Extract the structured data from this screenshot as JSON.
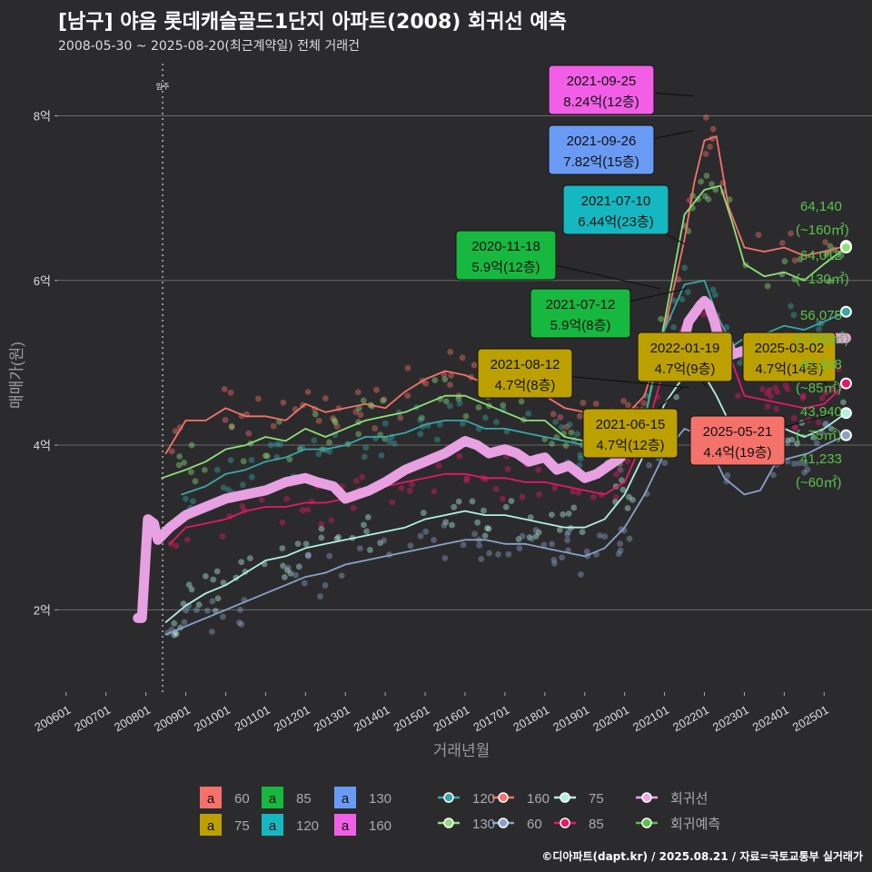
{
  "title": "[남구] 야음 롯데캐슬골드1단지 아파트(2008) 회귀선 예측",
  "subtitle": "2008-05-30 ~ 2025-08-20(최근계약일) 전체 거래건",
  "footer": "©디아파트(dapt.kr) / 2025.08.21 / 자료=국토교통부 실거래가",
  "chart_data": {
    "type": "line",
    "xlabel": "거래년월",
    "ylabel": "매매가(원)",
    "ylim": [
      1.0,
      8.7
    ],
    "xlim": [
      2005.8,
      2026.2
    ],
    "x_ticks": [
      {
        "label": "200601",
        "v": 2006.0
      },
      {
        "label": "200701",
        "v": 2007.0
      },
      {
        "label": "200801",
        "v": 2008.0
      },
      {
        "label": "200901",
        "v": 2009.0
      },
      {
        "label": "201001",
        "v": 2010.0
      },
      {
        "label": "201101",
        "v": 2011.0
      },
      {
        "label": "201201",
        "v": 2012.0
      },
      {
        "label": "201301",
        "v": 2013.0
      },
      {
        "label": "201401",
        "v": 2014.0
      },
      {
        "label": "201501",
        "v": 2015.0
      },
      {
        "label": "201601",
        "v": 2016.0
      },
      {
        "label": "201701",
        "v": 2017.0
      },
      {
        "label": "201801",
        "v": 2018.0
      },
      {
        "label": "201901",
        "v": 2019.0
      },
      {
        "label": "202001",
        "v": 2020.0
      },
      {
        "label": "202101",
        "v": 2021.0
      },
      {
        "label": "202201",
        "v": 2022.0
      },
      {
        "label": "202301",
        "v": 2023.0
      },
      {
        "label": "202401",
        "v": 2024.0
      },
      {
        "label": "202501",
        "v": 2025.0
      }
    ],
    "y_ticks": [
      {
        "label": "2억",
        "v": 2
      },
      {
        "label": "4억",
        "v": 4
      },
      {
        "label": "6억",
        "v": 6
      },
      {
        "label": "8억",
        "v": 8
      }
    ],
    "move_in": {
      "label": "입주",
      "x": 2008.42
    },
    "series": [
      {
        "name": "160",
        "color": "#f5726b",
        "x": [
          2008.5,
          2009.0,
          2009.5,
          2010.0,
          2010.5,
          2011.0,
          2011.5,
          2012.0,
          2012.5,
          2013.0,
          2013.5,
          2014.0,
          2014.5,
          2015.0,
          2015.5,
          2016.0,
          2016.5,
          2017.0,
          2017.5,
          2018.0,
          2018.5,
          2019.0,
          2019.5,
          2020.0,
          2020.5,
          2021.0,
          2021.5,
          2021.75,
          2022.0,
          2022.3,
          2022.6,
          2023.0,
          2023.5,
          2024.0,
          2024.5,
          2025.0,
          2025.55
        ],
        "values": [
          3.9,
          4.3,
          4.3,
          4.45,
          4.35,
          4.35,
          4.3,
          4.5,
          4.4,
          4.45,
          4.5,
          4.45,
          4.65,
          4.8,
          4.9,
          4.85,
          4.75,
          4.7,
          4.7,
          4.6,
          4.45,
          4.4,
          4.1,
          4.35,
          4.6,
          5.4,
          6.5,
          7.2,
          7.7,
          7.75,
          6.9,
          6.4,
          6.35,
          6.4,
          6.3,
          6.35,
          6.42
        ]
      },
      {
        "name": "130",
        "color": "#8fe07a",
        "x": [
          2008.4,
          2009.0,
          2009.5,
          2010.0,
          2010.5,
          2011.0,
          2011.5,
          2012.0,
          2012.5,
          2013.0,
          2013.5,
          2014.0,
          2014.5,
          2015.0,
          2015.5,
          2016.0,
          2016.5,
          2017.0,
          2017.5,
          2018.0,
          2018.5,
          2019.0,
          2019.5,
          2020.0,
          2020.5,
          2021.0,
          2021.5,
          2022.0,
          2022.4,
          2022.7,
          2023.0,
          2023.5,
          2024.0,
          2024.5,
          2025.0,
          2025.55
        ],
        "values": [
          3.6,
          3.7,
          3.8,
          3.95,
          4.0,
          4.1,
          4.05,
          4.2,
          4.1,
          4.2,
          4.3,
          4.35,
          4.4,
          4.5,
          4.6,
          4.6,
          4.5,
          4.4,
          4.3,
          4.3,
          4.1,
          4.05,
          3.9,
          4.0,
          4.3,
          5.5,
          6.8,
          7.1,
          7.15,
          6.7,
          6.2,
          6.05,
          6.1,
          6.0,
          6.2,
          6.4
        ]
      },
      {
        "name": "120",
        "color": "#3aa6a6",
        "x": [
          2008.9,
          2009.5,
          2010.0,
          2010.5,
          2011.0,
          2011.5,
          2012.0,
          2012.5,
          2013.0,
          2013.5,
          2014.0,
          2014.5,
          2015.0,
          2015.5,
          2016.0,
          2016.5,
          2017.0,
          2017.5,
          2018.0,
          2018.5,
          2019.0,
          2019.5,
          2020.0,
          2020.5,
          2021.0,
          2021.5,
          2022.0,
          2022.3,
          2022.7,
          2023.0,
          2023.5,
          2024.0,
          2024.5,
          2025.0,
          2025.55
        ],
        "values": [
          3.4,
          3.5,
          3.65,
          3.7,
          3.8,
          3.85,
          3.95,
          3.95,
          4.0,
          4.1,
          4.1,
          4.15,
          4.25,
          4.3,
          4.3,
          4.2,
          4.2,
          4.15,
          4.1,
          4.05,
          4.0,
          3.85,
          3.95,
          4.3,
          5.4,
          5.95,
          6.0,
          5.6,
          5.2,
          5.3,
          5.35,
          5.45,
          5.4,
          5.5,
          5.62
        ]
      },
      {
        "name": "85",
        "color": "#e6186a",
        "x": [
          2008.6,
          2009.0,
          2009.5,
          2010.0,
          2010.5,
          2011.0,
          2011.5,
          2012.0,
          2012.5,
          2013.0,
          2013.5,
          2014.0,
          2014.5,
          2015.0,
          2015.5,
          2016.0,
          2016.5,
          2017.0,
          2017.5,
          2018.0,
          2018.5,
          2019.0,
          2019.5,
          2020.0,
          2020.5,
          2021.0,
          2021.5,
          2022.0,
          2022.3,
          2022.7,
          2023.0,
          2023.5,
          2024.0,
          2024.5,
          2025.0,
          2025.55
        ],
        "values": [
          2.8,
          3.0,
          3.05,
          3.1,
          3.2,
          3.25,
          3.25,
          3.3,
          3.3,
          3.35,
          3.4,
          3.5,
          3.55,
          3.6,
          3.65,
          3.65,
          3.6,
          3.6,
          3.55,
          3.55,
          3.5,
          3.45,
          3.4,
          3.55,
          4.1,
          4.95,
          5.5,
          5.8,
          5.6,
          5.0,
          4.6,
          4.55,
          4.5,
          4.45,
          4.5,
          4.75
        ]
      },
      {
        "name": "75",
        "color": "#b2f0e0",
        "x": [
          2008.5,
          2009.0,
          2009.5,
          2010.0,
          2010.5,
          2011.0,
          2011.5,
          2012.0,
          2012.5,
          2013.0,
          2013.5,
          2014.0,
          2014.5,
          2015.0,
          2015.5,
          2016.0,
          2016.5,
          2017.0,
          2017.5,
          2018.0,
          2018.5,
          2019.0,
          2019.5,
          2020.0,
          2020.5,
          2021.0,
          2021.5,
          2022.0,
          2022.3,
          2022.6,
          2023.0,
          2023.5,
          2024.0,
          2024.5,
          2025.0,
          2025.55
        ],
        "values": [
          1.85,
          2.05,
          2.2,
          2.3,
          2.45,
          2.6,
          2.65,
          2.75,
          2.8,
          2.85,
          2.9,
          2.95,
          3.0,
          3.1,
          3.15,
          3.2,
          3.15,
          3.15,
          3.1,
          3.05,
          3.0,
          3.0,
          3.1,
          3.4,
          3.9,
          4.5,
          4.85,
          4.85,
          4.6,
          4.3,
          4.1,
          4.15,
          4.2,
          4.1,
          4.2,
          4.39
        ]
      },
      {
        "name": "60",
        "color": "#8aa2c8",
        "x": [
          2008.5,
          2009.0,
          2009.5,
          2010.0,
          2010.5,
          2011.0,
          2011.5,
          2012.0,
          2012.5,
          2013.0,
          2013.5,
          2014.0,
          2014.5,
          2015.0,
          2015.5,
          2016.0,
          2016.5,
          2017.0,
          2017.5,
          2018.0,
          2018.5,
          2019.0,
          2019.5,
          2020.0,
          2020.5,
          2021.0,
          2021.5,
          2022.0,
          2022.5,
          2023.0,
          2023.4,
          2023.8,
          2024.2,
          2024.6,
          2025.0,
          2025.55
        ],
        "values": [
          1.7,
          1.8,
          1.9,
          2.0,
          2.1,
          2.2,
          2.3,
          2.4,
          2.45,
          2.55,
          2.6,
          2.65,
          2.7,
          2.75,
          2.8,
          2.85,
          2.85,
          2.8,
          2.8,
          2.75,
          2.7,
          2.65,
          2.75,
          3.0,
          3.4,
          3.9,
          4.2,
          4.1,
          3.6,
          3.4,
          3.45,
          3.8,
          3.85,
          3.9,
          4.0,
          4.12
        ]
      },
      {
        "name": "회귀선",
        "color": "#f1a6ec",
        "x": [
          2007.8,
          2007.9,
          2008.05,
          2008.2,
          2008.3,
          2008.6,
          2009.0,
          2009.5,
          2010.0,
          2010.5,
          2011.0,
          2011.5,
          2012.0,
          2012.3,
          2012.7,
          2013.0,
          2013.3,
          2013.6,
          2014.0,
          2014.5,
          2015.0,
          2015.5,
          2016.0,
          2016.3,
          2016.6,
          2017.0,
          2017.3,
          2017.6,
          2018.0,
          2018.3,
          2018.6,
          2019.0,
          2019.3,
          2019.6,
          2019.9
        ],
        "values": [
          1.9,
          1.9,
          3.1,
          3.05,
          2.85,
          3.0,
          3.15,
          3.25,
          3.35,
          3.4,
          3.45,
          3.55,
          3.6,
          3.55,
          3.5,
          3.35,
          3.4,
          3.45,
          3.55,
          3.7,
          3.8,
          3.9,
          4.05,
          4.0,
          3.9,
          3.95,
          3.9,
          3.8,
          3.85,
          3.7,
          3.75,
          3.6,
          3.65,
          3.75,
          3.85
        ]
      },
      {
        "name": "회귀선2",
        "color": "#f1a6ec",
        "x": [
          2021.3,
          2021.6,
          2021.9,
          2022.0,
          2022.1,
          2022.25,
          2022.4,
          2022.55,
          2022.7,
          2023.0,
          2023.3,
          2023.6,
          2024.0,
          2024.3,
          2024.6,
          2025.0,
          2025.3,
          2025.55
        ],
        "values": [
          4.9,
          5.5,
          5.7,
          5.75,
          5.7,
          5.5,
          5.2,
          5.3,
          5.1,
          5.15,
          5.2,
          5.1,
          5.2,
          5.25,
          5.2,
          5.3,
          5.3,
          5.3
        ]
      }
    ],
    "forecast_labels": [
      {
        "value": "64,140",
        "area": "(~160㎡)"
      },
      {
        "value": "64,012",
        "area": "(~130㎡)"
      },
      {
        "value": "56,075",
        "area": "(~120㎡)"
      },
      {
        "value": "47,838",
        "area": "(~85㎡)"
      },
      {
        "value": "43,940",
        "area": "(~75㎡)"
      },
      {
        "value": "41,233",
        "area": "(~60㎡)"
      }
    ],
    "annotations": [
      {
        "date": "2021-09-25",
        "price": "8.24억(12층)",
        "series": "160",
        "x": 2021.73,
        "y": 8.24
      },
      {
        "date": "2021-09-26",
        "price": "7.82억(15층)",
        "series": "130",
        "x": 2021.73,
        "y": 7.82
      },
      {
        "date": "2021-07-10",
        "price": "6.44억(23층)",
        "series": "120",
        "x": 2021.52,
        "y": 6.44
      },
      {
        "date": "2020-11-18",
        "price": "5.9억(12층)",
        "series": "85",
        "x": 2020.88,
        "y": 5.9
      },
      {
        "date": "2021-07-12",
        "price": "5.9억(8층)",
        "series": "85",
        "x": 2021.53,
        "y": 5.9
      },
      {
        "date": "2021-08-12",
        "price": "4.7억(8층)",
        "series": "75",
        "x": 2021.61,
        "y": 4.7
      },
      {
        "date": "2022-01-19",
        "price": "4.7억(9층)",
        "series": "75",
        "x": 2022.05,
        "y": 4.7
      },
      {
        "date": "2025-03-02",
        "price": "4.7억(14층)",
        "series": "75",
        "x": 2025.17,
        "y": 4.7
      },
      {
        "date": "2021-06-15",
        "price": "4.7억(12층)",
        "series": "75",
        "x": 2021.45,
        "y": 4.7
      },
      {
        "date": "2025-05-21",
        "price": "4.4억(19층)",
        "series": "60",
        "x": 2025.39,
        "y": 4.4
      }
    ],
    "legend_boxes": [
      {
        "key": "a",
        "label": "60",
        "color": "#f5726b"
      },
      {
        "key": "a",
        "label": "85",
        "color": "#16b840"
      },
      {
        "key": "a",
        "label": "130",
        "color": "#6a9bf4"
      },
      {
        "key": "a",
        "label": "75",
        "color": "#bba000"
      },
      {
        "key": "a",
        "label": "120",
        "color": "#15b8c0"
      },
      {
        "key": "a",
        "label": "160",
        "color": "#f25fe6"
      }
    ],
    "legend_lines": [
      {
        "label": "120",
        "color": "#3aa6a6"
      },
      {
        "label": "130",
        "color": "#8fe07a"
      },
      {
        "label": "160",
        "color": "#f5726b"
      },
      {
        "label": "60",
        "color": "#8aa2c8"
      },
      {
        "label": "75",
        "color": "#b2f0e0"
      },
      {
        "label": "85",
        "color": "#e6186a"
      },
      {
        "label": "회귀선",
        "color": "#f1a6ec"
      },
      {
        "label": "회귀예측",
        "color": "#5ac24a"
      }
    ]
  }
}
